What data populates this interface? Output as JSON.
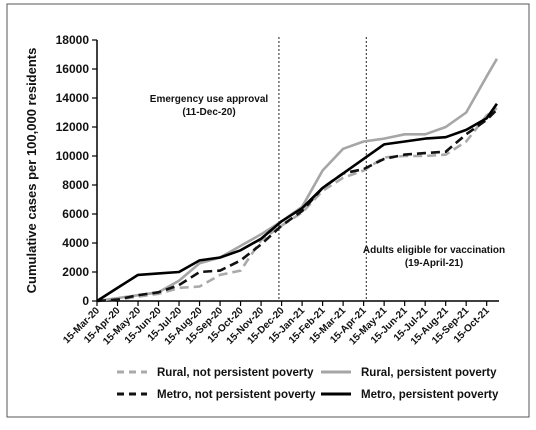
{
  "chart_data": {
    "type": "line",
    "xlabel": "",
    "ylabel": "Cumulative cases per 100,000 residents",
    "ylim": [
      0,
      18000
    ],
    "yticks": [
      0,
      2000,
      4000,
      6000,
      8000,
      10000,
      12000,
      14000,
      16000,
      18000
    ],
    "ytick_labels": [
      "0",
      "2000",
      "4000",
      "6000",
      "8000",
      "10000",
      "12000",
      "14000",
      "16000",
      "18000"
    ],
    "categories": [
      "15-Mar-20",
      "15-Apr-20",
      "15-May-20",
      "15-Jun-20",
      "15-Jul-20",
      "15-Aug-20",
      "15-Sep-20",
      "15-Oct-20",
      "15-Nov-20",
      "15-Dec-20",
      "15-Jan-21",
      "15-Feb-21",
      "15-Mar-21",
      "15-Apr-21",
      "15-May-21",
      "15-Jun-21",
      "15-Jul-21",
      "15-Aug-21",
      "15-Sep-21",
      "15-Oct-21"
    ],
    "grid": false,
    "legend_position": "bottom",
    "series": [
      {
        "name": "Rural, not persistent poverty",
        "color": "#aaaaaa",
        "dash": "dashed",
        "x": [
          0,
          1,
          2,
          3,
          4,
          5,
          6,
          7,
          8,
          9,
          10,
          11,
          12,
          13,
          14,
          15,
          16,
          17,
          18,
          19,
          19.5
        ],
        "values": [
          0,
          100,
          300,
          500,
          900,
          1000,
          1800,
          2100,
          4200,
          5200,
          6100,
          7600,
          8500,
          9000,
          9900,
          10000,
          10000,
          10100,
          11000,
          12800,
          13300
        ]
      },
      {
        "name": "Rural, persistent poverty",
        "color": "#a6a6a6",
        "dash": "solid",
        "x": [
          0,
          1,
          2,
          3,
          4,
          5,
          6,
          7,
          8,
          9,
          10,
          11,
          12,
          13,
          14,
          15,
          16,
          17,
          18,
          19,
          19.5
        ],
        "values": [
          0,
          200,
          400,
          600,
          1400,
          2600,
          3000,
          3800,
          4600,
          5500,
          6500,
          9000,
          10500,
          11000,
          11200,
          11500,
          11500,
          12000,
          13000,
          15500,
          16700
        ]
      },
      {
        "name": "Metro, not persistent poverty",
        "color": "#111111",
        "dash": "dashed",
        "x": [
          0,
          1,
          2,
          3,
          4,
          5,
          6,
          7,
          8,
          9,
          10,
          11,
          12,
          13,
          14,
          15,
          16,
          17,
          18,
          19,
          19.5
        ],
        "values": [
          0,
          100,
          400,
          600,
          1100,
          2000,
          2100,
          2800,
          3900,
          5200,
          6200,
          7800,
          8800,
          9100,
          9800,
          10100,
          10200,
          10300,
          11500,
          12500,
          13200
        ]
      },
      {
        "name": "Metro, persistent poverty",
        "color": "#000000",
        "dash": "solid",
        "x": [
          0,
          1,
          2,
          3,
          4,
          5,
          6,
          7,
          8,
          9,
          10,
          11,
          12,
          13,
          14,
          15,
          16,
          17,
          18,
          19,
          19.5
        ],
        "values": [
          0,
          900,
          1800,
          1900,
          2000,
          2800,
          3000,
          3500,
          4300,
          5500,
          6400,
          7800,
          8800,
          9800,
          10800,
          11000,
          11200,
          11300,
          11800,
          12600,
          13600
        ]
      }
    ],
    "annotations": [
      {
        "line1": "Emergency use approval",
        "line2": "(11-Dec-20)",
        "x": 8.87
      },
      {
        "line1": "Adults eligible for vaccination",
        "line2": "(19-April-21)",
        "x": 13.13
      }
    ]
  }
}
